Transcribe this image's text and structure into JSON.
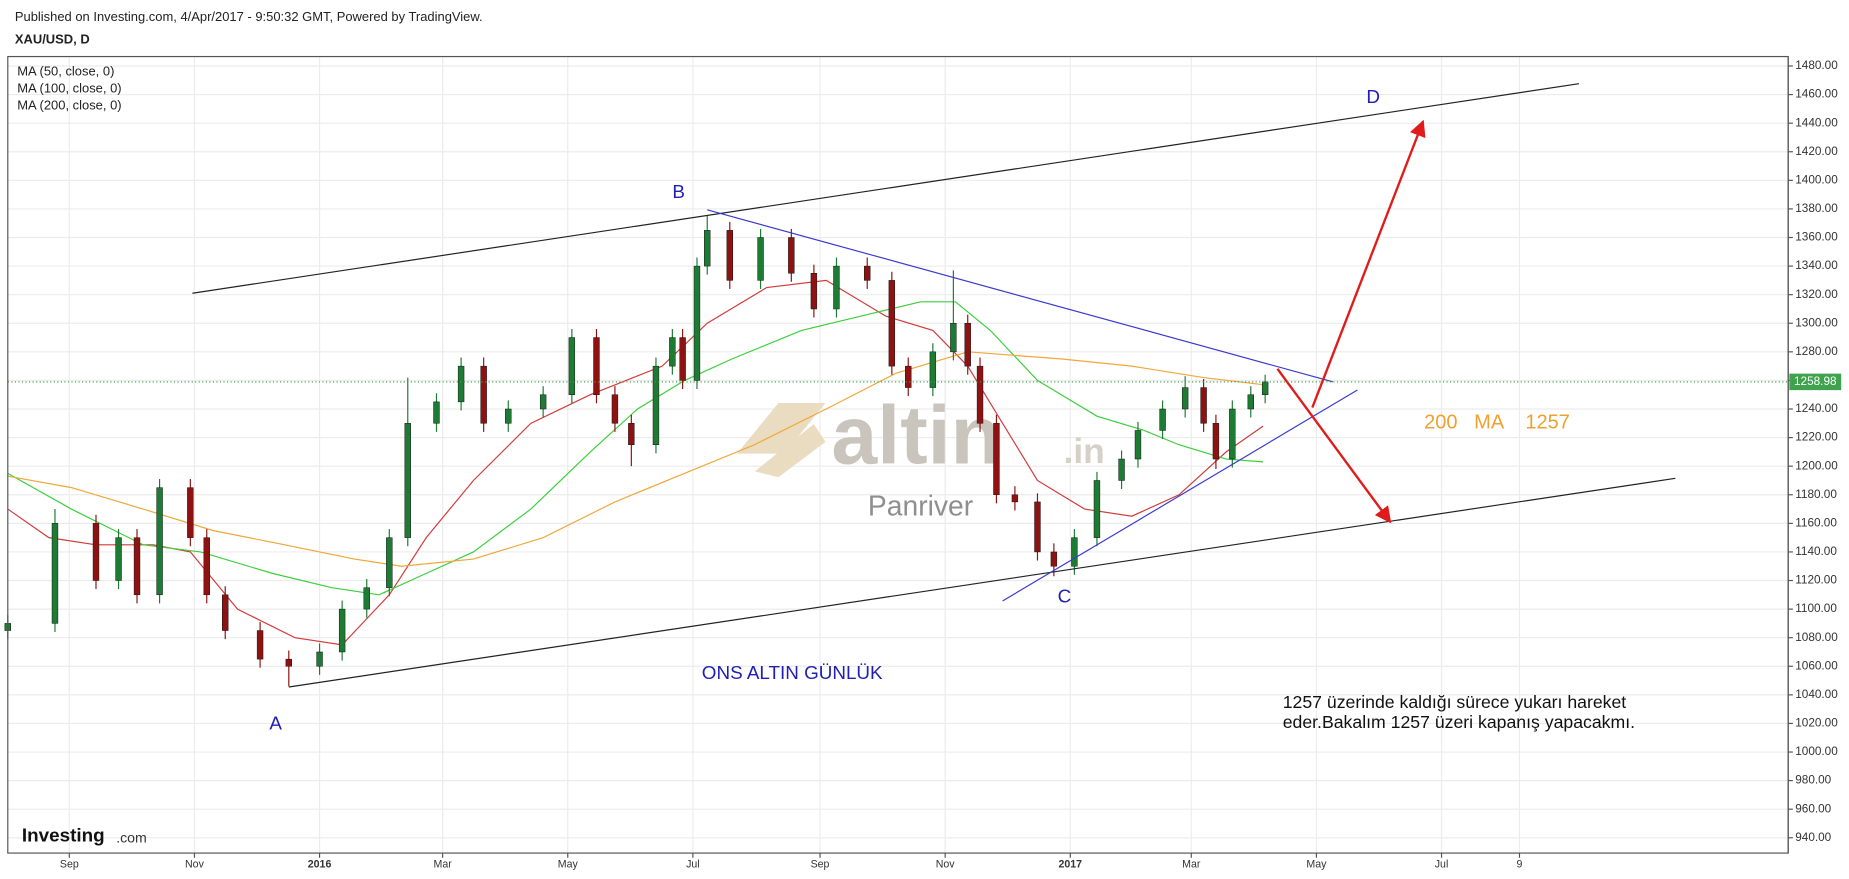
{
  "header": {
    "published": "Published on Investing.com, 4/Apr/2017 - 9:50:32 GMT, Powered by TradingView.",
    "symbol": "XAU/USD, D"
  },
  "chart_data": {
    "type": "candlestick",
    "x": [
      -30,
      -7,
      13,
      24,
      33,
      44,
      59,
      67,
      76,
      93,
      107,
      122,
      133,
      145,
      156,
      165,
      179,
      191,
      202,
      214,
      231,
      245,
      257,
      266,
      274,
      286,
      294,
      299,
      306,
      311,
      322,
      337,
      352,
      363,
      374,
      389,
      401,
      409,
      421,
      431,
      438,
      444,
      452,
      461,
      472,
      480,
      490,
      501,
      513,
      521,
      533,
      544,
      553,
      559,
      567,
      576,
      583
    ],
    "open": [
      1085,
      1090,
      1160,
      1120,
      1150,
      1110,
      1185,
      1150,
      1110,
      1085,
      1065,
      1060,
      1070,
      1100,
      1115,
      1150,
      1230,
      1245,
      1270,
      1230,
      1240,
      1250,
      1290,
      1250,
      1230,
      1215,
      1270,
      1290,
      1260,
      1340,
      1365,
      1330,
      1360,
      1335,
      1310,
      1340,
      1330,
      1270,
      1255,
      1280,
      1300,
      1270,
      1230,
      1180,
      1175,
      1140,
      1130,
      1150,
      1190,
      1205,
      1225,
      1240,
      1255,
      1230,
      1205,
      1240,
      1250
    ],
    "high": [
      1096,
      1170,
      1166,
      1156,
      1156,
      1191,
      1191,
      1156,
      1116,
      1091,
      1071,
      1076,
      1106,
      1121,
      1156,
      1262,
      1251,
      1276,
      1276,
      1246,
      1256,
      1296,
      1296,
      1256,
      1236,
      1276,
      1296,
      1296,
      1346,
      1375,
      1371,
      1366,
      1366,
      1341,
      1346,
      1346,
      1336,
      1276,
      1286,
      1337,
      1306,
      1276,
      1236,
      1186,
      1181,
      1146,
      1156,
      1196,
      1211,
      1231,
      1246,
      1263,
      1261,
      1236,
      1246,
      1256,
      1264
    ],
    "low": [
      1079,
      1084,
      1114,
      1114,
      1104,
      1104,
      1144,
      1104,
      1079,
      1059,
      1046,
      1054,
      1064,
      1094,
      1109,
      1144,
      1224,
      1239,
      1224,
      1224,
      1234,
      1244,
      1244,
      1224,
      1200,
      1209,
      1264,
      1254,
      1254,
      1334,
      1324,
      1324,
      1329,
      1304,
      1304,
      1324,
      1264,
      1249,
      1249,
      1274,
      1264,
      1224,
      1174,
      1169,
      1134,
      1123,
      1124,
      1144,
      1184,
      1199,
      1219,
      1234,
      1224,
      1198,
      1199,
      1234,
      1244
    ],
    "close": [
      1090,
      1160,
      1120,
      1150,
      1110,
      1185,
      1150,
      1110,
      1085,
      1065,
      1060,
      1070,
      1100,
      1115,
      1150,
      1230,
      1245,
      1270,
      1230,
      1240,
      1250,
      1290,
      1250,
      1230,
      1215,
      1270,
      1290,
      1260,
      1340,
      1365,
      1330,
      1360,
      1335,
      1310,
      1340,
      1330,
      1270,
      1255,
      1280,
      1300,
      1270,
      1230,
      1180,
      1175,
      1140,
      1130,
      1150,
      1190,
      1205,
      1225,
      1240,
      1255,
      1230,
      1205,
      1240,
      1250,
      1258.98
    ],
    "up_color": "#1e7b34",
    "down_color": "#8e1212",
    "last_price_color": "#3fa34d",
    "xlim": [
      -30,
      838
    ],
    "xticks": [
      {
        "value": 0,
        "label": "Sep"
      },
      {
        "value": 61,
        "label": "Nov"
      },
      {
        "value": 122,
        "label": "2016"
      },
      {
        "value": 182,
        "label": "Mar"
      },
      {
        "value": 243,
        "label": "May"
      },
      {
        "value": 304,
        "label": "Jul"
      },
      {
        "value": 366,
        "label": "Sep"
      },
      {
        "value": 427,
        "label": "Nov"
      },
      {
        "value": 488,
        "label": "2017"
      },
      {
        "value": 547,
        "label": "Mar"
      },
      {
        "value": 608,
        "label": "May"
      },
      {
        "value": 669,
        "label": "Jul"
      },
      {
        "value": 707,
        "label": "9"
      }
    ],
    "ylim": [
      929.3,
      1486.6
    ],
    "yticks": [
      {
        "value": 940,
        "label": "940.00"
      },
      {
        "value": 960,
        "label": "960.00"
      },
      {
        "value": 980,
        "label": "980.00"
      },
      {
        "value": 1000,
        "label": "1000.00"
      },
      {
        "value": 1020,
        "label": "1020.00"
      },
      {
        "value": 1040,
        "label": "1040.00"
      },
      {
        "value": 1060,
        "label": "1060.00"
      },
      {
        "value": 1080,
        "label": "1080.00"
      },
      {
        "value": 1100,
        "label": "1100.00"
      },
      {
        "value": 1120,
        "label": "1120.00"
      },
      {
        "value": 1140,
        "label": "1140.00"
      },
      {
        "value": 1160,
        "label": "1160.00"
      },
      {
        "value": 1180,
        "label": "1180.00"
      },
      {
        "value": 1200,
        "label": "1200.00"
      },
      {
        "value": 1220,
        "label": "1220.00"
      },
      {
        "value": 1240,
        "label": "1240.00"
      },
      {
        "value": 1260,
        "label": "1260.00"
      },
      {
        "value": 1280,
        "label": "1280.00"
      },
      {
        "value": 1300,
        "label": "1300.00"
      },
      {
        "value": 1320,
        "label": "1320.00"
      },
      {
        "value": 1340,
        "label": "1340.00"
      },
      {
        "value": 1360,
        "label": "1360.00"
      },
      {
        "value": 1380,
        "label": "1380.00"
      },
      {
        "value": 1400,
        "label": "1400.00"
      },
      {
        "value": 1420,
        "label": "1420.00"
      },
      {
        "value": 1440,
        "label": "1440.00"
      },
      {
        "value": 1460,
        "label": "1460.00"
      },
      {
        "value": 1480,
        "label": "1480.00"
      }
    ],
    "grid": true,
    "series": [
      {
        "name": "MA (50, close, 0)",
        "color": "#d23a3a",
        "x": [
          -30,
          -10,
          13,
          41,
          59,
          82,
          110,
          133,
          156,
          174,
          197,
          225,
          254,
          289,
          311,
          340,
          369,
          398,
          421,
          438,
          455,
          472,
          495,
          518,
          541,
          564,
          582
        ],
        "values": [
          1170,
          1150,
          1145,
          1145,
          1140,
          1100,
          1080,
          1075,
          1110,
          1150,
          1190,
          1230,
          1250,
          1270,
          1300,
          1325,
          1330,
          1305,
          1295,
          1270,
          1230,
          1190,
          1170,
          1165,
          1180,
          1210,
          1228
        ]
      },
      {
        "name": "MA (100, close, 0)",
        "color": "#3ccf3c",
        "x": [
          -30,
          1,
          36,
          64,
          99,
          128,
          151,
          174,
          197,
          225,
          254,
          277,
          300,
          323,
          357,
          386,
          415,
          432,
          449,
          472,
          501,
          524,
          541,
          564,
          582
        ],
        "values": [
          1195,
          1170,
          1145,
          1140,
          1125,
          1115,
          1110,
          1125,
          1140,
          1170,
          1210,
          1240,
          1260,
          1275,
          1295,
          1305,
          1315,
          1315,
          1295,
          1260,
          1235,
          1225,
          1215,
          1205,
          1203
        ]
      },
      {
        "name": "MA (200, close, 0)",
        "color": "#f0a73a",
        "x": [
          -30,
          1,
          36,
          70,
          105,
          139,
          162,
          197,
          231,
          266,
          300,
          334,
          369,
          403,
          438,
          484,
          518,
          553,
          582
        ],
        "values": [
          1193,
          1185,
          1170,
          1155,
          1145,
          1135,
          1130,
          1135,
          1150,
          1175,
          1195,
          1215,
          1240,
          1265,
          1280,
          1275,
          1270,
          1262,
          1257
        ]
      }
    ],
    "trend_lines": [
      {
        "color": "#222222",
        "x": [
          60,
          736
        ],
        "y": [
          1321,
          1467.6
        ]
      },
      {
        "color": "#222222",
        "x": [
          107,
          783
        ],
        "y": [
          1045.5,
          1191.5
        ]
      },
      {
        "color": "#3a3ad0",
        "x": [
          311,
          616
        ],
        "y": [
          1379.4,
          1259
        ]
      },
      {
        "color": "#3a3ad0",
        "x": [
          455,
          628
        ],
        "y": [
          1105.7,
          1253.3
        ]
      }
    ],
    "arrows": [
      {
        "color": "#e01b1b",
        "x": [
          606,
          660
        ],
        "y": [
          1241,
          1441.3
        ]
      },
      {
        "color": "#e01b1b",
        "x": [
          589,
          644
        ],
        "y": [
          1268.1,
          1160.9
        ]
      }
    ],
    "annotations": [
      "A",
      "B",
      "C",
      "D",
      "ONS ALTIN GÜNLÜK",
      "200   MA    1257"
    ],
    "note": [
      "1257 üzerinde kaldığı sürece yukarı hareket",
      "eder.Bakalım 1257 üzeri kapanış yapacakmı."
    ],
    "watermark": {
      "main": "altin",
      "suffix": ".in",
      "sub": "Panriver"
    },
    "logo": {
      "main": "Investing",
      "suffix": ".com"
    }
  }
}
